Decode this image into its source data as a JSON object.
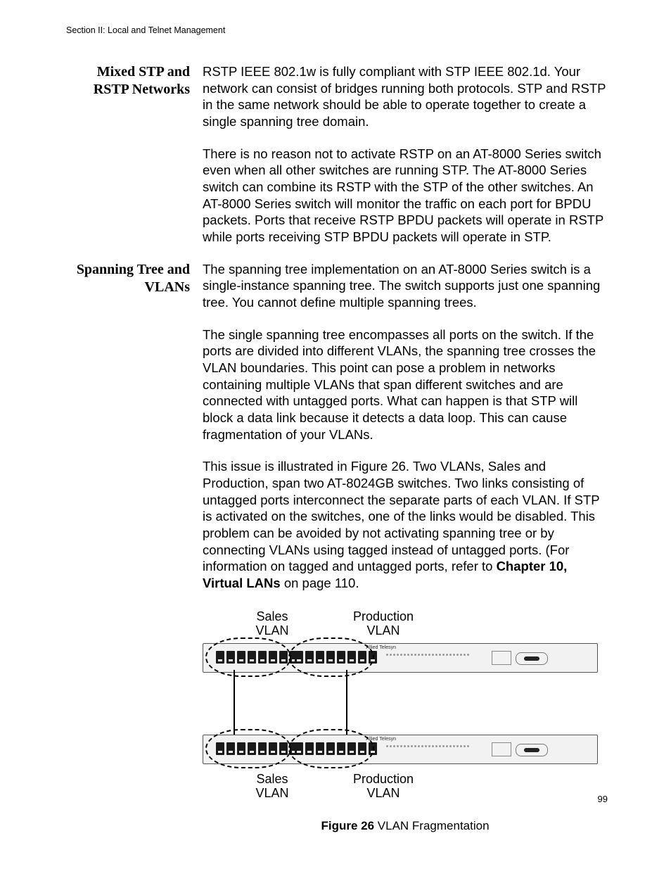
{
  "running_head": "Section II: Local and Telnet Management",
  "page_number": "99",
  "sections": [
    {
      "heading": "Mixed STP and RSTP Networks",
      "paragraphs": [
        "RSTP IEEE 802.1w is fully compliant with STP IEEE 802.1d. Your network can consist of bridges running both protocols. STP and RSTP in the same network should be able to operate together to create a single spanning tree domain.",
        "There is no reason not to activate RSTP on an AT-8000 Series switch even when all other switches are running STP. The AT-8000 Series switch can combine its RSTP with the STP of the other switches. An AT-8000 Series switch will monitor the traffic on each port for BPDU packets. Ports that receive RSTP BPDU packets will operate in RSTP while ports receiving STP BPDU packets will operate in STP."
      ]
    },
    {
      "heading": "Spanning Tree and VLANs",
      "paragraphs": [
        "The spanning tree implementation on an AT-8000 Series switch is a single-instance spanning tree. The switch supports just one spanning tree. You cannot define multiple spanning trees.",
        "The single spanning tree encompasses all ports on the switch. If the ports are divided into different VLANs, the spanning tree crosses the VLAN boundaries. This point can pose a problem in networks containing multiple VLANs that span different switches and are connected with untagged ports. What can happen is that STP will block a data link because it detects a data loop. This can cause fragmentation of your VLANs."
      ],
      "xref_para_pre": "This issue is illustrated in Figure 26. Two VLANs, Sales and Production, span two AT-8024GB switches. Two links consisting of untagged ports interconnect the separate parts of each VLAN. If STP is activated on the switches, one of the links would be disabled. This problem can be avoided by not activating spanning tree or by connecting VLANs using tagged instead of untagged ports. (For information on tagged and untagged ports, refer to ",
      "xref_strong": "Chapter 10, Virtual LANs",
      "xref_para_post": " on page 110."
    }
  ],
  "figure": {
    "top_labels": {
      "a_line1": "Sales",
      "a_line2": "VLAN",
      "b_line1": "Production",
      "b_line2": "VLAN"
    },
    "bottom_labels": {
      "a_line1": "Sales",
      "a_line2": "VLAN",
      "b_line1": "Production",
      "b_line2": "VLAN"
    },
    "brand": "Allied Telesyn",
    "caption_strong": "Figure 26",
    "caption_rest": "  VLAN Fragmentation",
    "ports_per_group": 8,
    "led_count": 24
  }
}
